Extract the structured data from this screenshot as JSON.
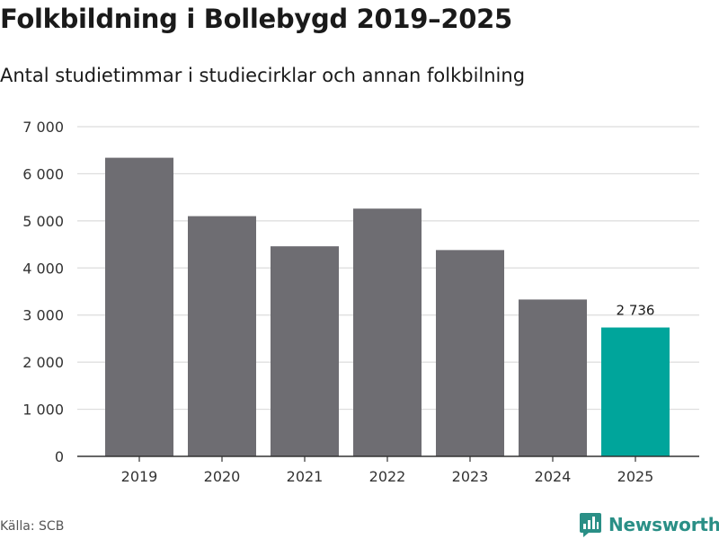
{
  "header": {
    "title": "Folkbildning i Bollebygd 2019–2025",
    "subtitle": "Antal studietimmar i studiecirklar och annan folkbilning"
  },
  "footer": {
    "source": "Källa: SCB",
    "brand": "Newsworthy"
  },
  "colors": {
    "bar_default": "#6e6d72",
    "bar_highlight": "#00a59b",
    "grid": "#dcdcdc",
    "axis": "#333333",
    "brand": "#2a8f86"
  },
  "chart_data": {
    "type": "bar",
    "title": "Folkbildning i Bollebygd 2019–2025",
    "subtitle": "Antal studietimmar i studiecirklar och annan folkbilning",
    "xlabel": "",
    "ylabel": "",
    "categories": [
      "2019",
      "2020",
      "2021",
      "2022",
      "2023",
      "2024",
      "2025"
    ],
    "values": [
      6340,
      5100,
      4460,
      5260,
      4380,
      3330,
      2736
    ],
    "highlight_index": 6,
    "data_labels": [
      {
        "index": 6,
        "text": "2 736"
      }
    ],
    "ylim": [
      0,
      7000
    ],
    "yticks": [
      0,
      1000,
      2000,
      3000,
      4000,
      5000,
      6000,
      7000
    ],
    "ytick_labels": [
      "0",
      "1 000",
      "2 000",
      "3 000",
      "4 000",
      "5 000",
      "6 000",
      "7 000"
    ],
    "grid": true,
    "legend": "none"
  }
}
